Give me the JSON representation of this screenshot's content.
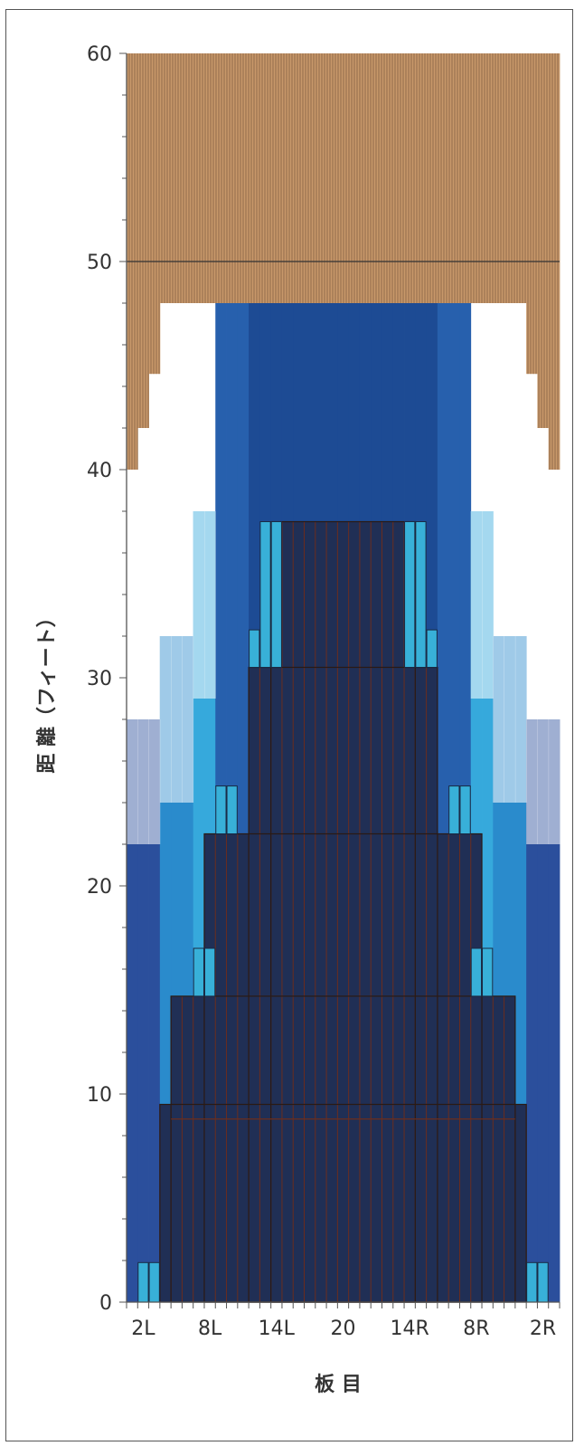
{
  "chart_data": {
    "type": "heatmap",
    "title": "",
    "xlabel": "板 目",
    "ylabel": "距 離（フィート）",
    "ylim": [
      0,
      60
    ],
    "yticks": [
      0,
      10,
      20,
      30,
      40,
      50,
      60
    ],
    "x_tick_labels": [
      "2L",
      "8L",
      "14L",
      "20",
      "14R",
      "8R",
      "2R"
    ],
    "boards": 39,
    "grid": false,
    "pindeck": {
      "start": 48,
      "end": 60,
      "wide_boards_edge_start": 40,
      "wide_boards_start": [
        40,
        42,
        44.6
      ],
      "marked_line": 50,
      "color": "#c8986a"
    },
    "oil_bands_from_outside_boards": [
      {
        "board_range": "1-3 / 37-39",
        "top_feet": 28,
        "color": "#2e4c98"
      },
      {
        "board_range": "4-6 / 34-36",
        "top_feet": 32,
        "color": "#2a8ccc"
      },
      {
        "board_range": "7-8 / 32-33",
        "top_feet": 38,
        "color": "#3ab0de"
      },
      {
        "board_range": "9-11 / 29-31",
        "top_feet": 48,
        "color": "#2456a4"
      },
      {
        "board_range": "12-28",
        "top_feet": 48,
        "color": "#1a4a92"
      }
    ],
    "dark_region_steps_feet": [
      {
        "board_range": "4-36",
        "top": 9.5
      },
      {
        "board_range": "5-35",
        "top": 14.7
      },
      {
        "board_range": "8-32",
        "top": 22.5
      },
      {
        "board_range": "12-28",
        "top": 30.5
      },
      {
        "board_range": "14-26",
        "top": 37.5
      }
    ],
    "highlight_marks": [
      {
        "boards": [
          2,
          3
        ],
        "from": 0,
        "to": 1.9
      },
      {
        "boards": [
          37,
          38
        ],
        "from": 0,
        "to": 1.9
      },
      {
        "boards": [
          7,
          8
        ],
        "from": 14.7,
        "to": 17
      },
      {
        "boards": [
          32,
          33
        ],
        "from": 14.7,
        "to": 17
      },
      {
        "boards": [
          9,
          10
        ],
        "from": 22.5,
        "to": 24.8
      },
      {
        "boards": [
          30,
          31
        ],
        "from": 22.5,
        "to": 24.8
      },
      {
        "boards": [
          12
        ],
        "from": 30.5,
        "to": 32.3
      },
      {
        "boards": [
          13,
          14
        ],
        "from": 30.5,
        "to": 37.5
      },
      {
        "boards": [
          26,
          27
        ],
        "from": 30.5,
        "to": 37.5
      },
      {
        "boards": [
          28
        ],
        "from": 30.5,
        "to": 32.3
      }
    ],
    "colors": {
      "dark_region": "#202f55",
      "highlight": "#38b0d8",
      "board_divider": "#6b2d1e"
    }
  }
}
